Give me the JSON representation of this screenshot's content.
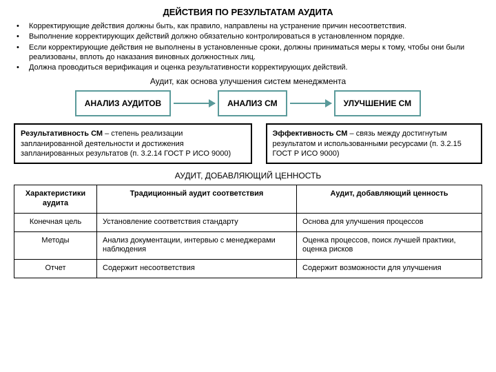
{
  "title": "ДЕЙСТВИЯ ПО РЕЗУЛЬТАТАМ АУДИТА",
  "bullets": [
    "Корректирующие действия должны быть, как правило, направлены на устранение причин несоответствия.",
    "Выполнение корректирующих действий должно обязательно контролироваться в установленном порядке.",
    "Если корректирующие действия не выполнены в установленные сроки, должны приниматься меры к тому, чтобы они были реализованы, вплоть до наказания виновных должностных лиц.",
    "Должна проводиться верификация и оценка результативности корректирующих действий."
  ],
  "subtitle": "Аудит, как основа улучшения систем менеджмента",
  "flow": {
    "box1": "АНАЛИЗ АУДИТОВ",
    "box2": "АНАЛИЗ СМ",
    "box3": "УЛУЧШЕНИЕ СМ",
    "border_color": "#5a9a9a"
  },
  "defs": {
    "left_bold": "Результативность СМ",
    "left_rest": " – степень реализации запланированной деятельности и достижения запланированных результатов (п. 3.2.14 ГОСТ Р ИСО 9000)",
    "right_bold": "Эффективность СМ",
    "right_rest": " – связь между достигнутым результатом и использованными ресурсами (п. 3.2.15 ГОСТ Р ИСО 9000)"
  },
  "section2_title": "АУДИТ, ДОБАВЛЯЮЩИЙ ЦЕННОСТЬ",
  "table": {
    "headers": [
      "Характеристики аудита",
      "Традиционный аудит соответствия",
      "Аудит, добавляющий ценность"
    ],
    "rows": [
      [
        "Конечная цель",
        "Установление соответствия стандарту",
        "Основа для улучшения процессов"
      ],
      [
        "Методы",
        "Анализ документации, интервью с менеджерами наблюдения",
        "Оценка процессов, поиск лучшей практики, оценка рисков"
      ],
      [
        "Отчет",
        "Содержит несоответствия",
        "Содержит возможности для улучшения"
      ]
    ]
  }
}
